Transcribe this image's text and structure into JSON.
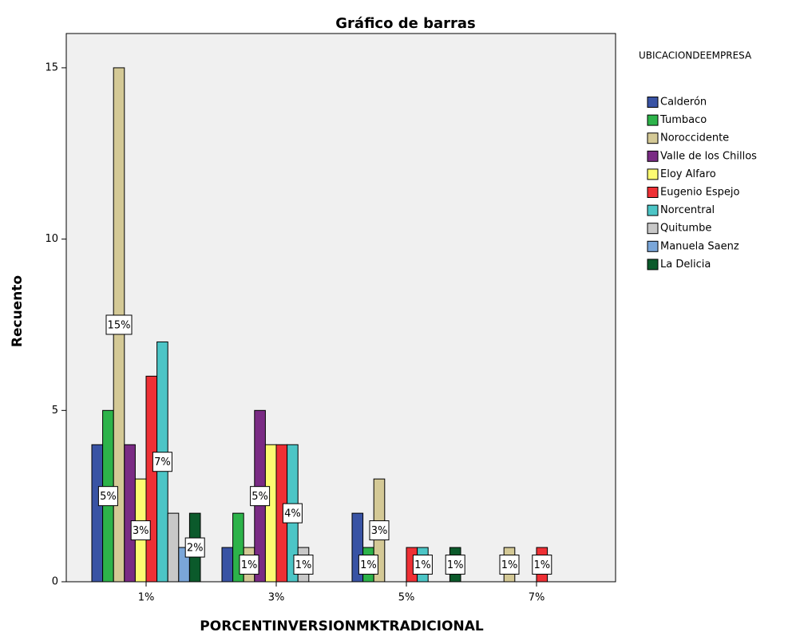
{
  "chart_data": {
    "type": "bar",
    "title": "Gráfico de barras",
    "x_label": "PORCENTINVERSIONMKTRADICIONAL",
    "y_label": "Recuento",
    "legend_title": "UBICACIONDEEMPRESA",
    "categories": [
      "1%",
      "3%",
      "5%",
      "7%"
    ],
    "ylim": [
      0,
      16
    ],
    "yticks": [
      0,
      5,
      10,
      15
    ],
    "series": [
      {
        "name": "Calderón",
        "color": "#3953a4",
        "values": [
          4,
          1,
          2,
          0
        ],
        "value_labels": [
          null,
          null,
          null,
          null
        ]
      },
      {
        "name": "Tumbaco",
        "color": "#2db34a",
        "values": [
          5,
          2,
          1,
          0
        ],
        "value_labels": [
          "5%",
          null,
          "1%",
          null
        ]
      },
      {
        "name": "Noroccidente",
        "color": "#d4c996",
        "values": [
          15,
          1,
          3,
          1
        ],
        "value_labels": [
          "15%",
          "1%",
          "3%",
          "1%"
        ]
      },
      {
        "name": "Valle de los Chillos",
        "color": "#7a2b84",
        "values": [
          4,
          5,
          0,
          0
        ],
        "value_labels": [
          null,
          "5%",
          null,
          null
        ]
      },
      {
        "name": "Eloy Alfaro",
        "color": "#fdfb72",
        "values": [
          3,
          4,
          0,
          0
        ],
        "value_labels": [
          "3%",
          null,
          null,
          null
        ]
      },
      {
        "name": "Eugenio Espejo",
        "color": "#ee3035",
        "values": [
          6,
          4,
          1,
          1
        ],
        "value_labels": [
          null,
          null,
          null,
          "1%"
        ]
      },
      {
        "name": "Norcentral",
        "color": "#4cc5c6",
        "values": [
          7,
          4,
          1,
          0
        ],
        "value_labels": [
          "7%",
          "4%",
          "1%",
          null
        ]
      },
      {
        "name": "Quitumbe",
        "color": "#c8c8c8",
        "values": [
          2,
          1,
          0,
          0
        ],
        "value_labels": [
          null,
          "1%",
          null,
          null
        ]
      },
      {
        "name": "Manuela Saenz",
        "color": "#7aa6d9",
        "values": [
          1,
          0,
          0,
          0
        ],
        "value_labels": [
          null,
          null,
          null,
          null
        ]
      },
      {
        "name": "La Delicia",
        "color": "#0b5a2b",
        "values": [
          2,
          0,
          1,
          0
        ],
        "value_labels": [
          "2%",
          null,
          "1%",
          null
        ]
      }
    ]
  }
}
